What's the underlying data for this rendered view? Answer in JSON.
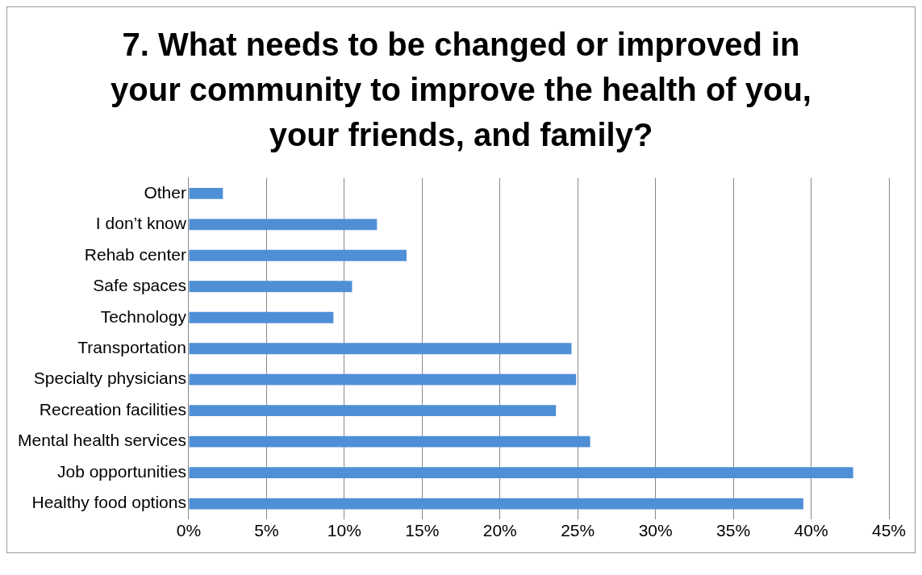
{
  "chart_data": {
    "type": "bar",
    "orientation": "horizontal",
    "title": "7. What needs to be changed or improved in your community to improve the health of you, your friends, and family?",
    "categories": [
      "Other",
      "I don’t know",
      "Rehab center",
      "Safe spaces",
      "Technology",
      "Transportation",
      "Specialty physicians",
      "Recreation facilities",
      "Mental health services",
      "Job opportunities",
      "Healthy food options"
    ],
    "values": [
      2.2,
      12.1,
      14.0,
      10.5,
      9.3,
      24.6,
      24.9,
      23.6,
      25.8,
      42.7,
      39.5
    ],
    "color": "#4f8fd6",
    "xlim": [
      0,
      45
    ],
    "xticks": [
      {
        "value": 0,
        "label": "0%"
      },
      {
        "value": 5,
        "label": "5%"
      },
      {
        "value": 10,
        "label": "10%"
      },
      {
        "value": 15,
        "label": "15%"
      },
      {
        "value": 20,
        "label": "20%"
      },
      {
        "value": 25,
        "label": "25%"
      },
      {
        "value": 30,
        "label": "30%"
      },
      {
        "value": 35,
        "label": "35%"
      },
      {
        "value": 40,
        "label": "40%"
      },
      {
        "value": 45,
        "label": "45%"
      }
    ],
    "grid": "x",
    "legend": false
  }
}
